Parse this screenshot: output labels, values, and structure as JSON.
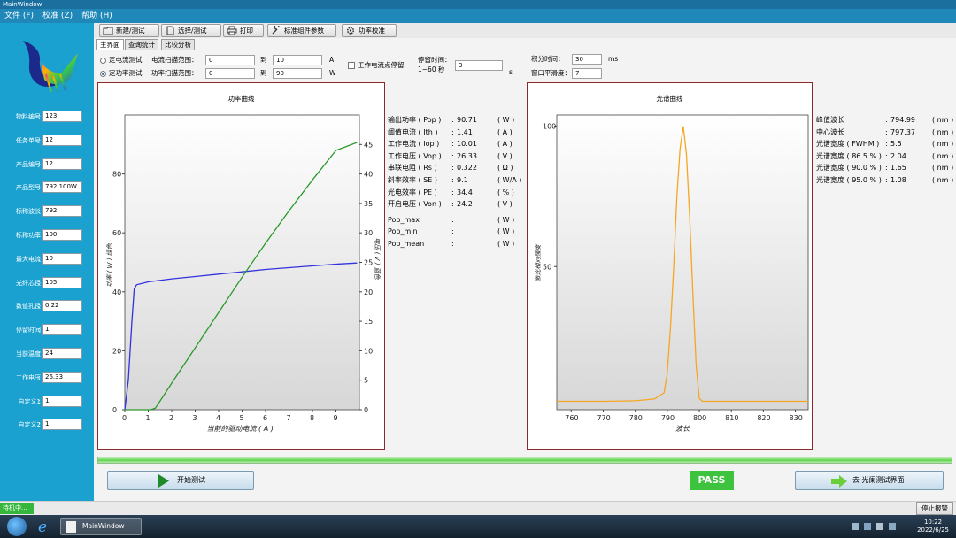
{
  "window": {
    "title": "MainWindow"
  },
  "menu": [
    "文件 (F)",
    "校准 (Z)",
    "帮助 (H)"
  ],
  "toolbar": {
    "new_test": "新建/测试",
    "select_test": "选择/测试",
    "print": "打印",
    "std_params": "标准组件参数",
    "power_calib": "功率校准"
  },
  "tabs": [
    "主界面",
    "查询统计",
    "比较分析"
  ],
  "sidebar": {
    "fields": [
      {
        "label": "物料编号",
        "value": "123"
      },
      {
        "label": "任务单号",
        "value": "12"
      },
      {
        "label": "产品编号",
        "value": "12"
      },
      {
        "label": "产品型号",
        "value": "792 100W"
      },
      {
        "label": "标称波长",
        "value": "792"
      },
      {
        "label": "标称功率",
        "value": "100"
      },
      {
        "label": "最大电流",
        "value": "10"
      },
      {
        "label": "光纤芯径",
        "value": "105"
      },
      {
        "label": "数值孔径",
        "value": "0.22"
      },
      {
        "label": "停留时间",
        "value": "1"
      },
      {
        "label": "当前温度",
        "value": "24"
      },
      {
        "label": "工作电压",
        "value": "26.33"
      },
      {
        "label": "自定义1",
        "value": "1"
      },
      {
        "label": "自定义2",
        "value": "1"
      }
    ]
  },
  "params": {
    "mode_current": "定电流测试",
    "mode_power": "定功率测试",
    "current_range_label": "电流扫描范围：",
    "power_range_label": "功率扫描范围：",
    "current_from": "0",
    "current_to": "10",
    "power_from": "0",
    "power_to": "90",
    "to_word": "到",
    "unit_a": "A",
    "unit_w": "W",
    "dwell_check": "工作电流点停留",
    "dwell_label": "停留时间：",
    "dwell_range": "1~60 秒",
    "dwell_value": "3",
    "dwell_unit": "s",
    "integ_label": "积分时间：",
    "integ_value": "30",
    "integ_unit": "ms",
    "smooth_label": "窗口平滑度：",
    "smooth_value": "7"
  },
  "power_results": [
    {
      "label": "输出功率 ( Pop )",
      "value": "90.71",
      "unit": "( W )"
    },
    {
      "label": "阈值电流 ( Ith )",
      "value": "1.41",
      "unit": "( A )"
    },
    {
      "label": "工作电流 ( Iop )",
      "value": "10.01",
      "unit": "( A )"
    },
    {
      "label": "工作电压 ( Vop )",
      "value": "26.33",
      "unit": "( V )"
    },
    {
      "label": "串联电阻 ( Rs )",
      "value": "0.322",
      "unit": "( Ω )"
    },
    {
      "label": "斜率效率 ( SE )",
      "value": "9.1",
      "unit": "( W/A )"
    },
    {
      "label": "光电效率 ( PE )",
      "value": "34.4",
      "unit": "( % )"
    },
    {
      "label": "开启电压 ( Von )",
      "value": "24.2",
      "unit": "( V )"
    },
    {
      "label": "Pop_max",
      "value": "",
      "unit": "( W )"
    },
    {
      "label": "Pop_min",
      "value": "",
      "unit": "( W )"
    },
    {
      "label": "Pop_mean",
      "value": "",
      "unit": "( W )"
    }
  ],
  "spectrum_results": [
    {
      "label": "峰值波长",
      "value": "794.99",
      "unit": "( nm )"
    },
    {
      "label": "中心波长",
      "value": "797.37",
      "unit": "( nm )"
    },
    {
      "label": "光谱宽度 ( FWHM )",
      "value": "5.5",
      "unit": "( nm )"
    },
    {
      "label": "光谱宽度 ( 86.5 % )",
      "value": "2.04",
      "unit": "( nm )"
    },
    {
      "label": "光谱宽度 ( 90.0 % )",
      "value": "1.65",
      "unit": "( nm )"
    },
    {
      "label": "光谱宽度 ( 95.0 % )",
      "value": "1.08",
      "unit": "( nm )"
    }
  ],
  "actions": {
    "start_test": "开始测试",
    "pass": "PASS",
    "go_spectrum": "去 光阑测试界面"
  },
  "status": {
    "state": "待机中...",
    "stop_alarm": "停止报警"
  },
  "taskbar": {
    "task_title": "MainWindow",
    "time": "10:22",
    "date": "2022/6/25"
  },
  "colors": {
    "power_line": "#3333dd",
    "voltage_line": "#2a9a2a",
    "spectrum_line": "#f5a623",
    "sidebar_bg": "#1aa1cf",
    "pass_bg": "#3dc33d"
  },
  "chart_data": [
    {
      "type": "line",
      "title": "功率曲线",
      "xlabel": "当前的驱动电流 ( A )",
      "ylabel": "功率 ( W ) 绿色",
      "y2label": "电压 ( V ) 蓝色",
      "xlim": [
        0,
        10
      ],
      "ylim": [
        0,
        100
      ],
      "y2lim": [
        0,
        50
      ],
      "xticks": [
        0,
        1,
        2,
        3,
        4,
        5,
        6,
        7,
        8,
        9
      ],
      "yticks": [
        0,
        20,
        40,
        60,
        80
      ],
      "y2ticks": [
        0,
        5,
        10,
        15,
        20,
        25,
        30,
        35,
        40,
        45
      ],
      "series": [
        {
          "axis": "y2",
          "x": [
            0,
            0.15,
            0.3,
            0.4,
            0.5,
            1,
            2,
            3,
            4,
            5,
            6,
            7,
            8,
            9,
            9.9
          ],
          "y": [
            0,
            5,
            15,
            20.5,
            21.2,
            21.7,
            22.2,
            22.6,
            23.0,
            23.4,
            23.8,
            24.1,
            24.4,
            24.7,
            24.9
          ]
        },
        {
          "axis": "y",
          "x": [
            0,
            1.1,
            1.3,
            2,
            3,
            4,
            5,
            6,
            7,
            8,
            9,
            9.9
          ],
          "y": [
            0,
            0,
            0.5,
            9,
            21,
            33,
            45,
            56.5,
            67.5,
            78,
            88,
            90.7
          ]
        }
      ]
    },
    {
      "type": "line",
      "title": "光谱曲线",
      "xlabel": "波长",
      "ylabel": "激光相对强度",
      "xlim": [
        755.5,
        834
      ],
      "ylim": [
        -1,
        104
      ],
      "xticks": [
        760,
        770,
        780,
        790,
        800,
        810,
        820,
        830
      ],
      "yticks": [
        50,
        100
      ],
      "series": [
        {
          "x": [
            755.5,
            770,
            780,
            786,
            789,
            790,
            791,
            792,
            793,
            794,
            795,
            796,
            797,
            798,
            799,
            800,
            801,
            802,
            810,
            834
          ],
          "y": [
            2,
            2,
            2.2,
            2.8,
            5,
            12,
            28,
            50,
            75,
            92,
            100,
            90,
            68,
            40,
            15,
            3,
            2,
            2,
            2,
            2
          ]
        }
      ]
    }
  ]
}
